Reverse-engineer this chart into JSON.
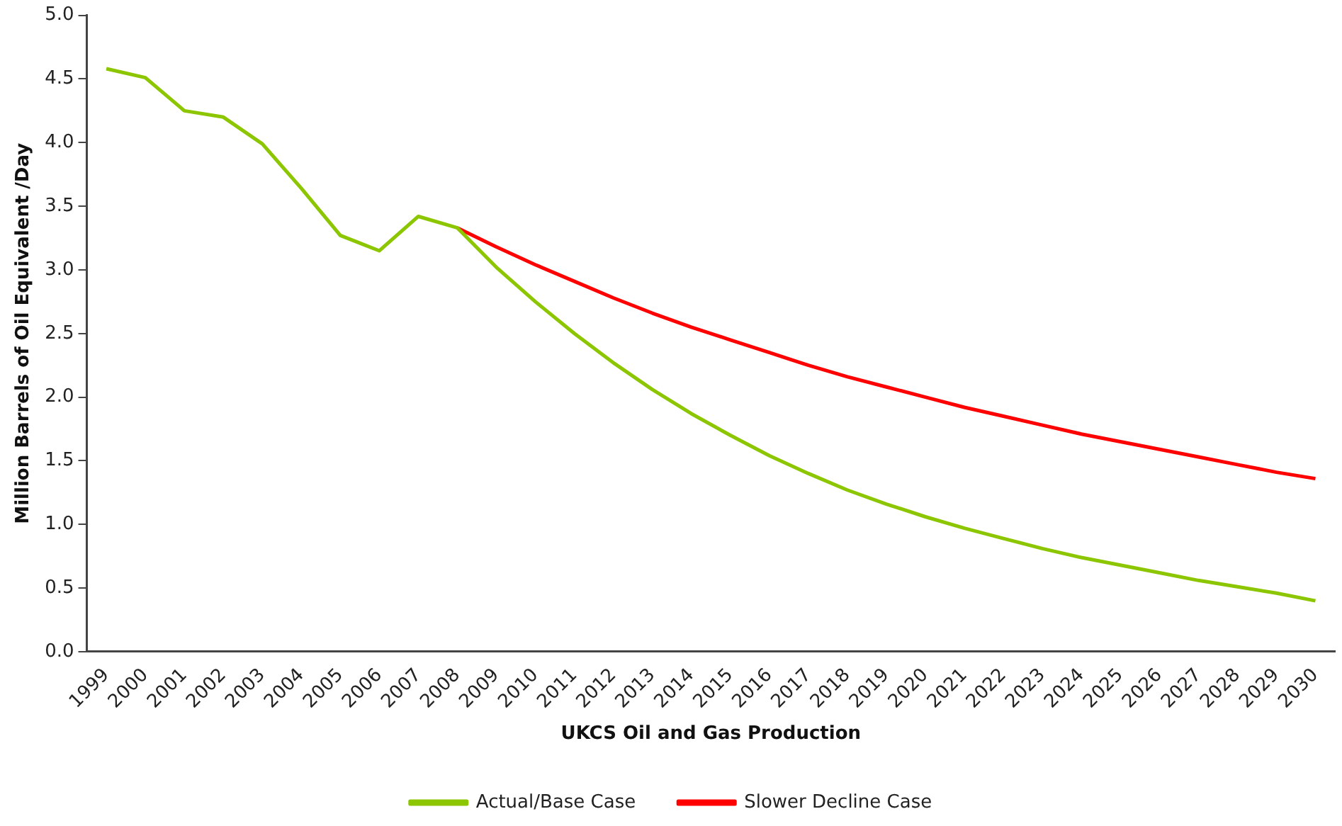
{
  "chart_data": {
    "type": "line",
    "xlabel": "UKCS Oil and Gas Production",
    "ylabel": "Million Barrels of Oil Equivalent /Day",
    "categories": [
      "1999",
      "2000",
      "2001",
      "2002",
      "2003",
      "2004",
      "2005",
      "2006",
      "2007",
      "2008",
      "2009",
      "2010",
      "2011",
      "2012",
      "2013",
      "2014",
      "2015",
      "2016",
      "2017",
      "2018",
      "2019",
      "2020",
      "2021",
      "2022",
      "2023",
      "2024",
      "2025",
      "2026",
      "2027",
      "2028",
      "2029",
      "2030"
    ],
    "series": [
      {
        "name": "Actual/Base Case",
        "color": "#8cc600",
        "values": [
          4.58,
          4.51,
          4.25,
          4.2,
          3.99,
          3.64,
          3.27,
          3.15,
          3.42,
          3.33,
          3.02,
          2.75,
          2.5,
          2.27,
          2.06,
          1.87,
          1.7,
          1.54,
          1.4,
          1.27,
          1.16,
          1.06,
          0.97,
          0.89,
          0.81,
          0.74,
          0.68,
          0.62,
          0.56,
          0.51,
          0.46,
          0.4
        ]
      },
      {
        "name": "Slower Decline Case",
        "color": "#ff0000",
        "values": [
          null,
          null,
          null,
          null,
          null,
          null,
          null,
          null,
          null,
          3.33,
          3.18,
          3.04,
          2.91,
          2.78,
          2.66,
          2.55,
          2.45,
          2.35,
          2.25,
          2.16,
          2.08,
          2.0,
          1.92,
          1.85,
          1.78,
          1.71,
          1.65,
          1.59,
          1.53,
          1.47,
          1.41,
          1.36
        ]
      }
    ],
    "ylim": [
      0,
      5
    ],
    "yticks": [
      {
        "value": 0,
        "label": "0.0"
      },
      {
        "value": 0.5,
        "label": "0.5"
      },
      {
        "value": 1,
        "label": "1.0"
      },
      {
        "value": 1.5,
        "label": "1.5"
      },
      {
        "value": 2,
        "label": "2.0"
      },
      {
        "value": 2.5,
        "label": "2.5"
      },
      {
        "value": 3,
        "label": "3.0"
      },
      {
        "value": 3.5,
        "label": "3.5"
      },
      {
        "value": 4,
        "label": "4.0"
      },
      {
        "value": 4.5,
        "label": "4.5"
      },
      {
        "value": 5,
        "label": "5.0"
      }
    ],
    "grid": false,
    "legend": "bottom",
    "marker": "none",
    "line_style": "solid"
  }
}
